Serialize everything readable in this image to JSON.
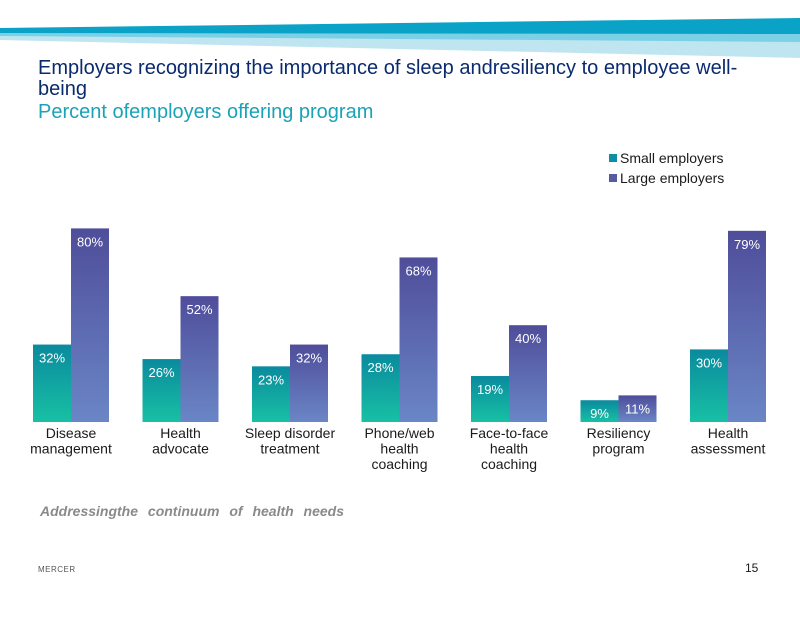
{
  "header": {
    "title": "Employers recognizing the importance of sleep andresiliency to employee well-being",
    "subtitle": "Percent ofemployers offering program"
  },
  "footer": {
    "tagline": "Addressingthe continuum of health needs",
    "brand": "MERCER",
    "page_number": "15"
  },
  "colors": {
    "small_top": "#0a8a9e",
    "small_bottom": "#18c0a4",
    "large_top": "#4f4d9a",
    "large_bottom": "#6a86c6",
    "banner_dark": "#0aa2c6",
    "banner_light": "#a9dcea"
  },
  "chart_data": {
    "type": "bar",
    "categories": [
      [
        "Disease",
        "management"
      ],
      [
        "Health",
        "advocate"
      ],
      [
        "Sleep disorder",
        "treatment"
      ],
      [
        "Phone/web",
        "health",
        "coaching"
      ],
      [
        "Face-to-face",
        "health",
        "coaching"
      ],
      [
        "Resiliency",
        "program"
      ],
      [
        "Health",
        "assessment"
      ]
    ],
    "series": [
      {
        "name": "Small employers",
        "values": [
          32,
          26,
          23,
          28,
          19,
          9,
          30
        ]
      },
      {
        "name": "Large employers",
        "values": [
          80,
          52,
          32,
          68,
          40,
          11,
          79
        ]
      }
    ],
    "data_labels": [
      [
        "32%",
        "26%",
        "23%",
        "28%",
        "19%",
        "9%",
        "30%"
      ],
      [
        "80%",
        "52%",
        "32%",
        "68%",
        "40%",
        "11%",
        "79%"
      ]
    ],
    "ylim": [
      0,
      100
    ],
    "legend_position": "top-right",
    "grid": false
  }
}
